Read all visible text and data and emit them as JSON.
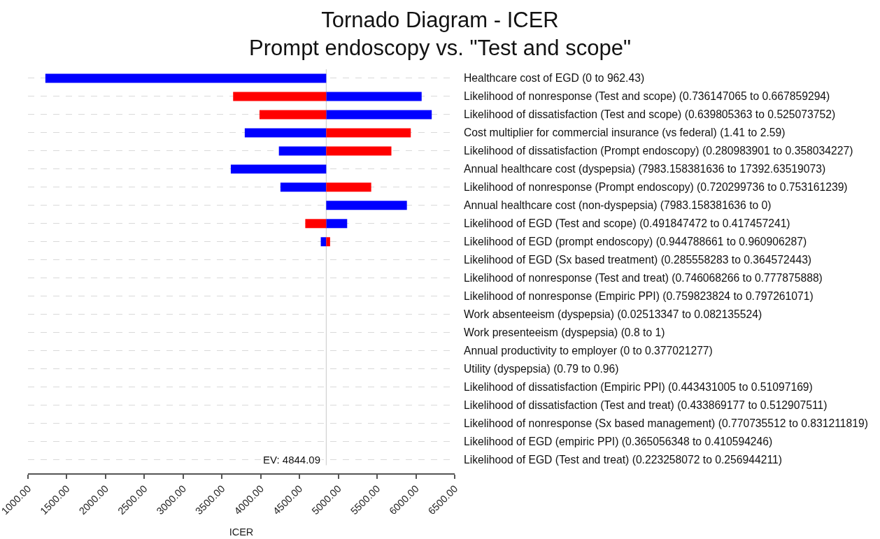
{
  "chart_data": {
    "type": "bar",
    "orientation": "horizontal",
    "title": "Tornado Diagram - ICER",
    "subtitle": "Prompt endoscopy vs. \"Test and scope\"",
    "xlabel": "ICER",
    "categories": [
      "Healthcare cost of EGD (0 to 962.43)",
      "Likelihood of nonresponse (Test and scope) (0.736147065 to 0.667859294)",
      "Likelihood of dissatisfaction (Test and scope) (0.639805363 to 0.525073752)",
      "Cost multiplier for commercial insurance (vs federal) (1.41 to 2.59)",
      "Likelihood of dissatisfaction (Prompt endoscopy) (0.280983901 to 0.358034227)",
      "Annual healthcare cost (dyspepsia) (7983.158381636 to 17392.63519073)",
      "Likelihood of nonresponse (Prompt endoscopy) (0.720299736 to 0.753161239)",
      "Annual healthcare cost (non-dyspepsia) (7983.158381636 to 0)",
      "Likelihood of EGD (Test and scope) (0.491847472 to 0.417457241)",
      "Likelihood of EGD (prompt endoscopy) (0.944788661 to 0.960906287)",
      "Likelihood of EGD (Sx based treatment) (0.285558283 to 0.364572443)",
      "Likelihood of nonresponse (Test and treat) (0.746068266 to 0.777875888)",
      "Likelihood of nonresponse (Empiric PPI) (0.759823824 to 0.797261071)",
      "Work absenteeism (dyspepsia) (0.02513347 to 0.082135524)",
      "Work presenteeism (dyspepsia) (0.8 to 1)",
      "Annual productivity to employer (0 to 0.377021277)",
      "Utility (dyspepsia) (0.79 to 0.96)",
      "Likelihood of dissatisfaction (Empiric PPI) (0.443431005 to 0.51097169)",
      "Likelihood of dissatisfaction (Test and treat) (0.433869177 to 0.512907511)",
      "Likelihood of nonresponse (Sx based management) (0.770735512 to 0.831211819)",
      "Likelihood of EGD (empiric PPI) (0.365056348 to 0.410594246)",
      "Likelihood of EGD (Test and treat) (0.223258072 to 0.256944211)"
    ],
    "series": [
      {
        "color": "#0000ff",
        "base": [
          4844.09,
          4844.09,
          4844.09,
          4844.09,
          4844.09,
          4844.09,
          4844.09,
          4844.09,
          4844.09,
          4844.09,
          null,
          null,
          null,
          null,
          null,
          null,
          null,
          null,
          null,
          null,
          null,
          null
        ],
        "values": [
          -3620,
          1230,
          1360,
          -1050,
          -610,
          -1230,
          -590,
          1040,
          270,
          -70,
          null,
          null,
          null,
          null,
          null,
          null,
          null,
          null,
          null,
          null,
          null,
          null
        ]
      },
      {
        "color": "#ff0000",
        "base": [
          null,
          4844.09,
          4844.09,
          4844.09,
          4844.09,
          null,
          4844.09,
          null,
          4844.09,
          4844.09,
          null,
          null,
          null,
          null,
          null,
          null,
          null,
          null,
          null,
          null,
          null,
          null
        ],
        "values": [
          null,
          -1200,
          -860,
          1090,
          840,
          null,
          580,
          null,
          -270,
          50,
          null,
          null,
          null,
          null,
          null,
          null,
          null,
          null,
          null,
          null,
          null,
          null
        ]
      }
    ],
    "xlim": [
      1000,
      6500
    ],
    "xticks": [
      {
        "value": 1000,
        "label": "1000.00"
      },
      {
        "value": 1500,
        "label": "1500.00"
      },
      {
        "value": 2000,
        "label": "2000.00"
      },
      {
        "value": 2500,
        "label": "2500.00"
      },
      {
        "value": 3000,
        "label": "3000.00"
      },
      {
        "value": 3500,
        "label": "3500.00"
      },
      {
        "value": 4000,
        "label": "4000.00"
      },
      {
        "value": 4500,
        "label": "4500.00"
      },
      {
        "value": 5000,
        "label": "5000.00"
      },
      {
        "value": 5500,
        "label": "5500.00"
      },
      {
        "value": 6000,
        "label": "6000.00"
      },
      {
        "value": 6500,
        "label": "6500.00"
      }
    ],
    "ref_lines": [
      {
        "axis": "x",
        "value": 4844.09,
        "label": "EV: 4844.09",
        "color": "#c8c8c8"
      }
    ],
    "grid": "y"
  }
}
